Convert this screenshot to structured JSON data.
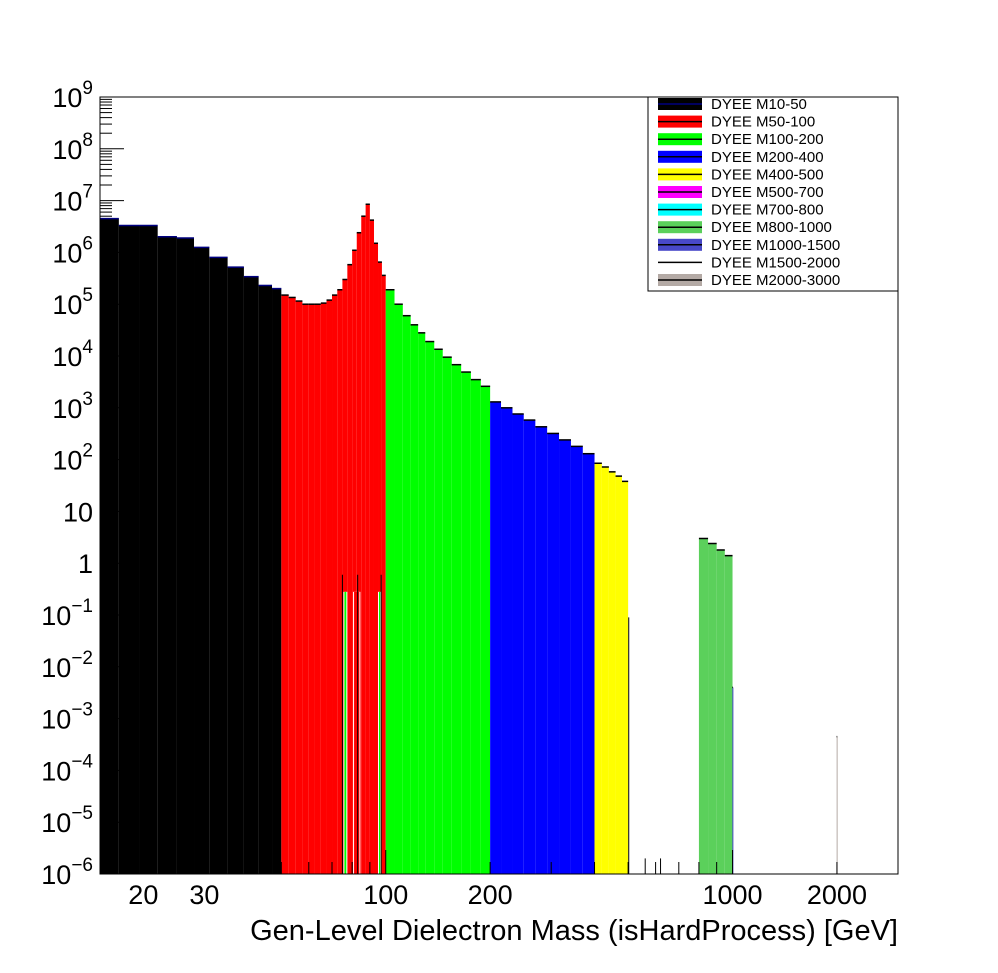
{
  "chart_data": {
    "type": "bar",
    "title": "",
    "xlabel": "Gen-Level Dielectron Mass (isHardProcess) [GeV]",
    "ylabel": "",
    "x_scale": "log",
    "y_scale": "log",
    "xlim": [
      15,
      3000
    ],
    "ylim": [
      1e-06,
      1000000000.0
    ],
    "grid": false,
    "legend_position": "top-right",
    "x_tick_labels": [
      "20",
      "30",
      "100",
      "200",
      "1000",
      "2000"
    ],
    "y_tick_labels": [
      {
        "base": "10",
        "exp": "9"
      },
      {
        "base": "10",
        "exp": "8"
      },
      {
        "base": "10",
        "exp": "7"
      },
      {
        "base": "10",
        "exp": "6"
      },
      {
        "base": "10",
        "exp": "5"
      },
      {
        "base": "10",
        "exp": "4"
      },
      {
        "base": "10",
        "exp": "3"
      },
      {
        "base": "10",
        "exp": "2"
      },
      {
        "base": "10",
        "exp": ""
      },
      {
        "base": "1",
        "exp": ""
      },
      {
        "base": "10",
        "exp": "−1"
      },
      {
        "base": "10",
        "exp": "−2"
      },
      {
        "base": "10",
        "exp": "−3"
      },
      {
        "base": "10",
        "exp": "−4"
      },
      {
        "base": "10",
        "exp": "−5"
      },
      {
        "base": "10",
        "exp": "−6"
      }
    ],
    "series": [
      {
        "name": "DYEE M10-50",
        "color": "#000000",
        "legend_line": "#00007f",
        "bins": [
          [
            15,
            17,
            4500000.0
          ],
          [
            17,
            19.5,
            3300000.0
          ],
          [
            19.5,
            22,
            3300000.0
          ],
          [
            22,
            25,
            2000000.0
          ],
          [
            25,
            28,
            1900000.0
          ],
          [
            28,
            31,
            1250000.0
          ],
          [
            31,
            35,
            800000.0
          ],
          [
            35,
            39,
            520000.0
          ],
          [
            39,
            43,
            340000.0
          ],
          [
            43,
            47,
            230000.0
          ],
          [
            47,
            50,
            200000.0
          ]
        ]
      },
      {
        "name": "DYEE M50-100",
        "color": "#ff0000",
        "legend_line": "#000000",
        "bins": [
          [
            50,
            52.5,
            150000.0
          ],
          [
            52.5,
            55,
            135000.0
          ],
          [
            55,
            57.5,
            115000.0
          ],
          [
            57.5,
            60,
            100000.0
          ],
          [
            60,
            62.5,
            100000.0
          ],
          [
            62.5,
            65,
            100000.0
          ],
          [
            65,
            67.5,
            105000.0
          ],
          [
            67.5,
            70,
            120000.0
          ],
          [
            70,
            72.5,
            150000.0
          ],
          [
            72.5,
            75,
            190000.0
          ],
          [
            75,
            77.5,
            300000.0
          ],
          [
            77.5,
            80,
            580000.0
          ],
          [
            80,
            82.5,
            1100000.0
          ],
          [
            82.5,
            85,
            2400000.0
          ],
          [
            85,
            87.5,
            5000000.0
          ],
          [
            87.5,
            90,
            8500000.0
          ],
          [
            90,
            92.5,
            4200000.0
          ],
          [
            92.5,
            95,
            1500000.0
          ],
          [
            95,
            97.5,
            650000.0
          ],
          [
            97.5,
            100,
            360000.0
          ]
        ]
      },
      {
        "name": "DYEE M100-200",
        "color": "#00ff00",
        "legend_line": "#000000",
        "bins": [
          [
            100,
            106,
            190000.0
          ],
          [
            106,
            112,
            100000.0
          ],
          [
            112,
            118,
            60000.0
          ],
          [
            118,
            124,
            40000.0
          ],
          [
            124,
            130,
            28000.0
          ],
          [
            130,
            138,
            19000.0
          ],
          [
            138,
            146,
            13500.0
          ],
          [
            146,
            155,
            9500.0
          ],
          [
            155,
            165,
            6800.0
          ],
          [
            165,
            176,
            4900.0
          ],
          [
            176,
            188,
            3500.0
          ],
          [
            188,
            200,
            2600.0
          ]
        ]
      },
      {
        "name": "DYEE M200-400",
        "color": "#0000ff",
        "legend_line": "#000000",
        "bins": [
          [
            200,
            215,
            1300.0
          ],
          [
            215,
            232,
            1000.0
          ],
          [
            232,
            250,
            760.0
          ],
          [
            250,
            270,
            580.0
          ],
          [
            270,
            292,
            430.0
          ],
          [
            292,
            316,
            320.0
          ],
          [
            316,
            342,
            240.0
          ],
          [
            342,
            370,
            180.0
          ],
          [
            370,
            400,
            130.0
          ]
        ]
      },
      {
        "name": "DYEE M400-500",
        "color": "#ffff00",
        "legend_line": "#000000",
        "bins": [
          [
            400,
            420,
            85
          ],
          [
            420,
            440,
            72
          ],
          [
            440,
            460,
            58
          ],
          [
            460,
            480,
            48
          ],
          [
            480,
            500,
            38
          ]
        ]
      },
      {
        "name": "DYEE M500-700",
        "color": "#ff00ff",
        "legend_line": "#000000",
        "bins": []
      },
      {
        "name": "DYEE M700-800",
        "color": "#00ffff",
        "legend_line": "#000000",
        "bins": []
      },
      {
        "name": "DYEE M800-1000",
        "color": "#5bd05b",
        "legend_line": "#000000",
        "bins": [
          [
            800,
            850,
            3.0
          ],
          [
            850,
            900,
            2.4
          ],
          [
            900,
            950,
            1.8
          ],
          [
            950,
            1000,
            1.4
          ]
        ]
      },
      {
        "name": "DYEE M1000-1500",
        "color": "#4848c8",
        "legend_line": "#000000",
        "bins": [
          [
            999,
            1003,
            0.004
          ]
        ]
      },
      {
        "name": "DYEE M1500-2000",
        "color": "#ffffff",
        "legend_line": "#000000",
        "bins": []
      },
      {
        "name": "DYEE M2000-3000",
        "color": "#b4aaa5",
        "legend_line": "#000000",
        "bins": [
          [
            1996,
            2004,
            0.00045
          ]
        ]
      }
    ],
    "stray_lines": [
      {
        "x": 75,
        "y": 0.6
      },
      {
        "x": 83,
        "y": 0.6
      },
      {
        "x": 97,
        "y": 0.6
      },
      {
        "x": 502,
        "y": 0.09
      },
      {
        "x": 560,
        "y": 2e-06
      },
      {
        "x": 620,
        "y": 2e-06
      }
    ],
    "inner_gaps": [
      {
        "from": 75.5,
        "to": 77.5,
        "y": 0.28,
        "fill_color": "#00ff00"
      },
      {
        "from": 80.5,
        "to": 84.5,
        "y": 0.28,
        "fill_color": "#ff0000"
      },
      {
        "from": 95,
        "to": 97,
        "y": 0.28,
        "fill_color": "#00ff00"
      }
    ]
  }
}
